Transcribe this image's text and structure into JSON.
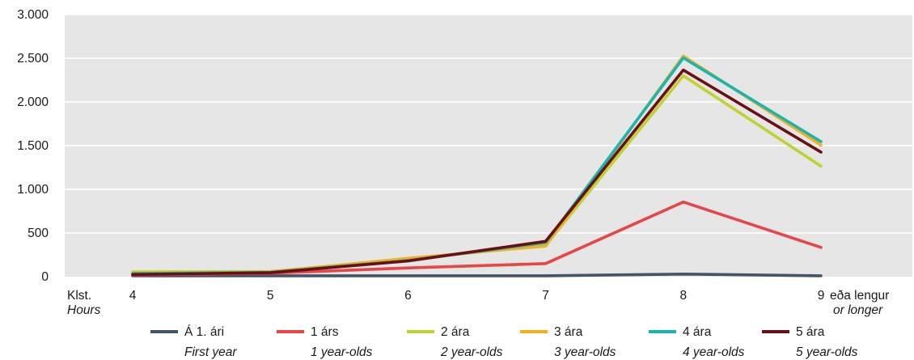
{
  "chart_data": {
    "type": "line",
    "title": "",
    "x_label": {
      "is": "Klst.",
      "en": "Hours"
    },
    "categories": [
      "4",
      "5",
      "6",
      "7",
      "8",
      "9"
    ],
    "last_category_suffix": {
      "is": "eða lengur",
      "en": "or longer"
    },
    "ylim": [
      0,
      3000
    ],
    "y_ticks": [
      {
        "value": 0,
        "label": "0"
      },
      {
        "value": 500,
        "label": "500"
      },
      {
        "value": 1000,
        "label": "1.000"
      },
      {
        "value": 1500,
        "label": "1.500"
      },
      {
        "value": 2000,
        "label": "2.000"
      },
      {
        "value": 2500,
        "label": "2.500"
      },
      {
        "value": 3000,
        "label": "3.000"
      }
    ],
    "grid": true,
    "legend_position": "bottom",
    "series": [
      {
        "name": "Á 1. ári",
        "name_en": "First year",
        "color": "#44546a",
        "values": [
          10,
          10,
          10,
          10,
          30,
          10
        ]
      },
      {
        "name": "1 árs",
        "name_en": "1 year-olds",
        "color": "#e84545",
        "values": [
          20,
          40,
          100,
          150,
          855,
          335
        ]
      },
      {
        "name": "2 ára",
        "name_en": "2 year-olds",
        "color": "#bfd230",
        "values": [
          55,
          60,
          200,
          360,
          2300,
          1265
        ]
      },
      {
        "name": "3 ára",
        "name_en": "3 year-olds",
        "color": "#f2b11c",
        "values": [
          40,
          55,
          210,
          350,
          2525,
          1505
        ]
      },
      {
        "name": "4 ára",
        "name_en": "4 year-olds",
        "color": "#1bb5b0",
        "values": [
          35,
          50,
          185,
          390,
          2505,
          1545
        ]
      },
      {
        "name": "5 ára",
        "name_en": "5 year-olds",
        "color": "#6b0f16",
        "values": [
          25,
          45,
          180,
          405,
          2365,
          1425
        ]
      }
    ]
  }
}
